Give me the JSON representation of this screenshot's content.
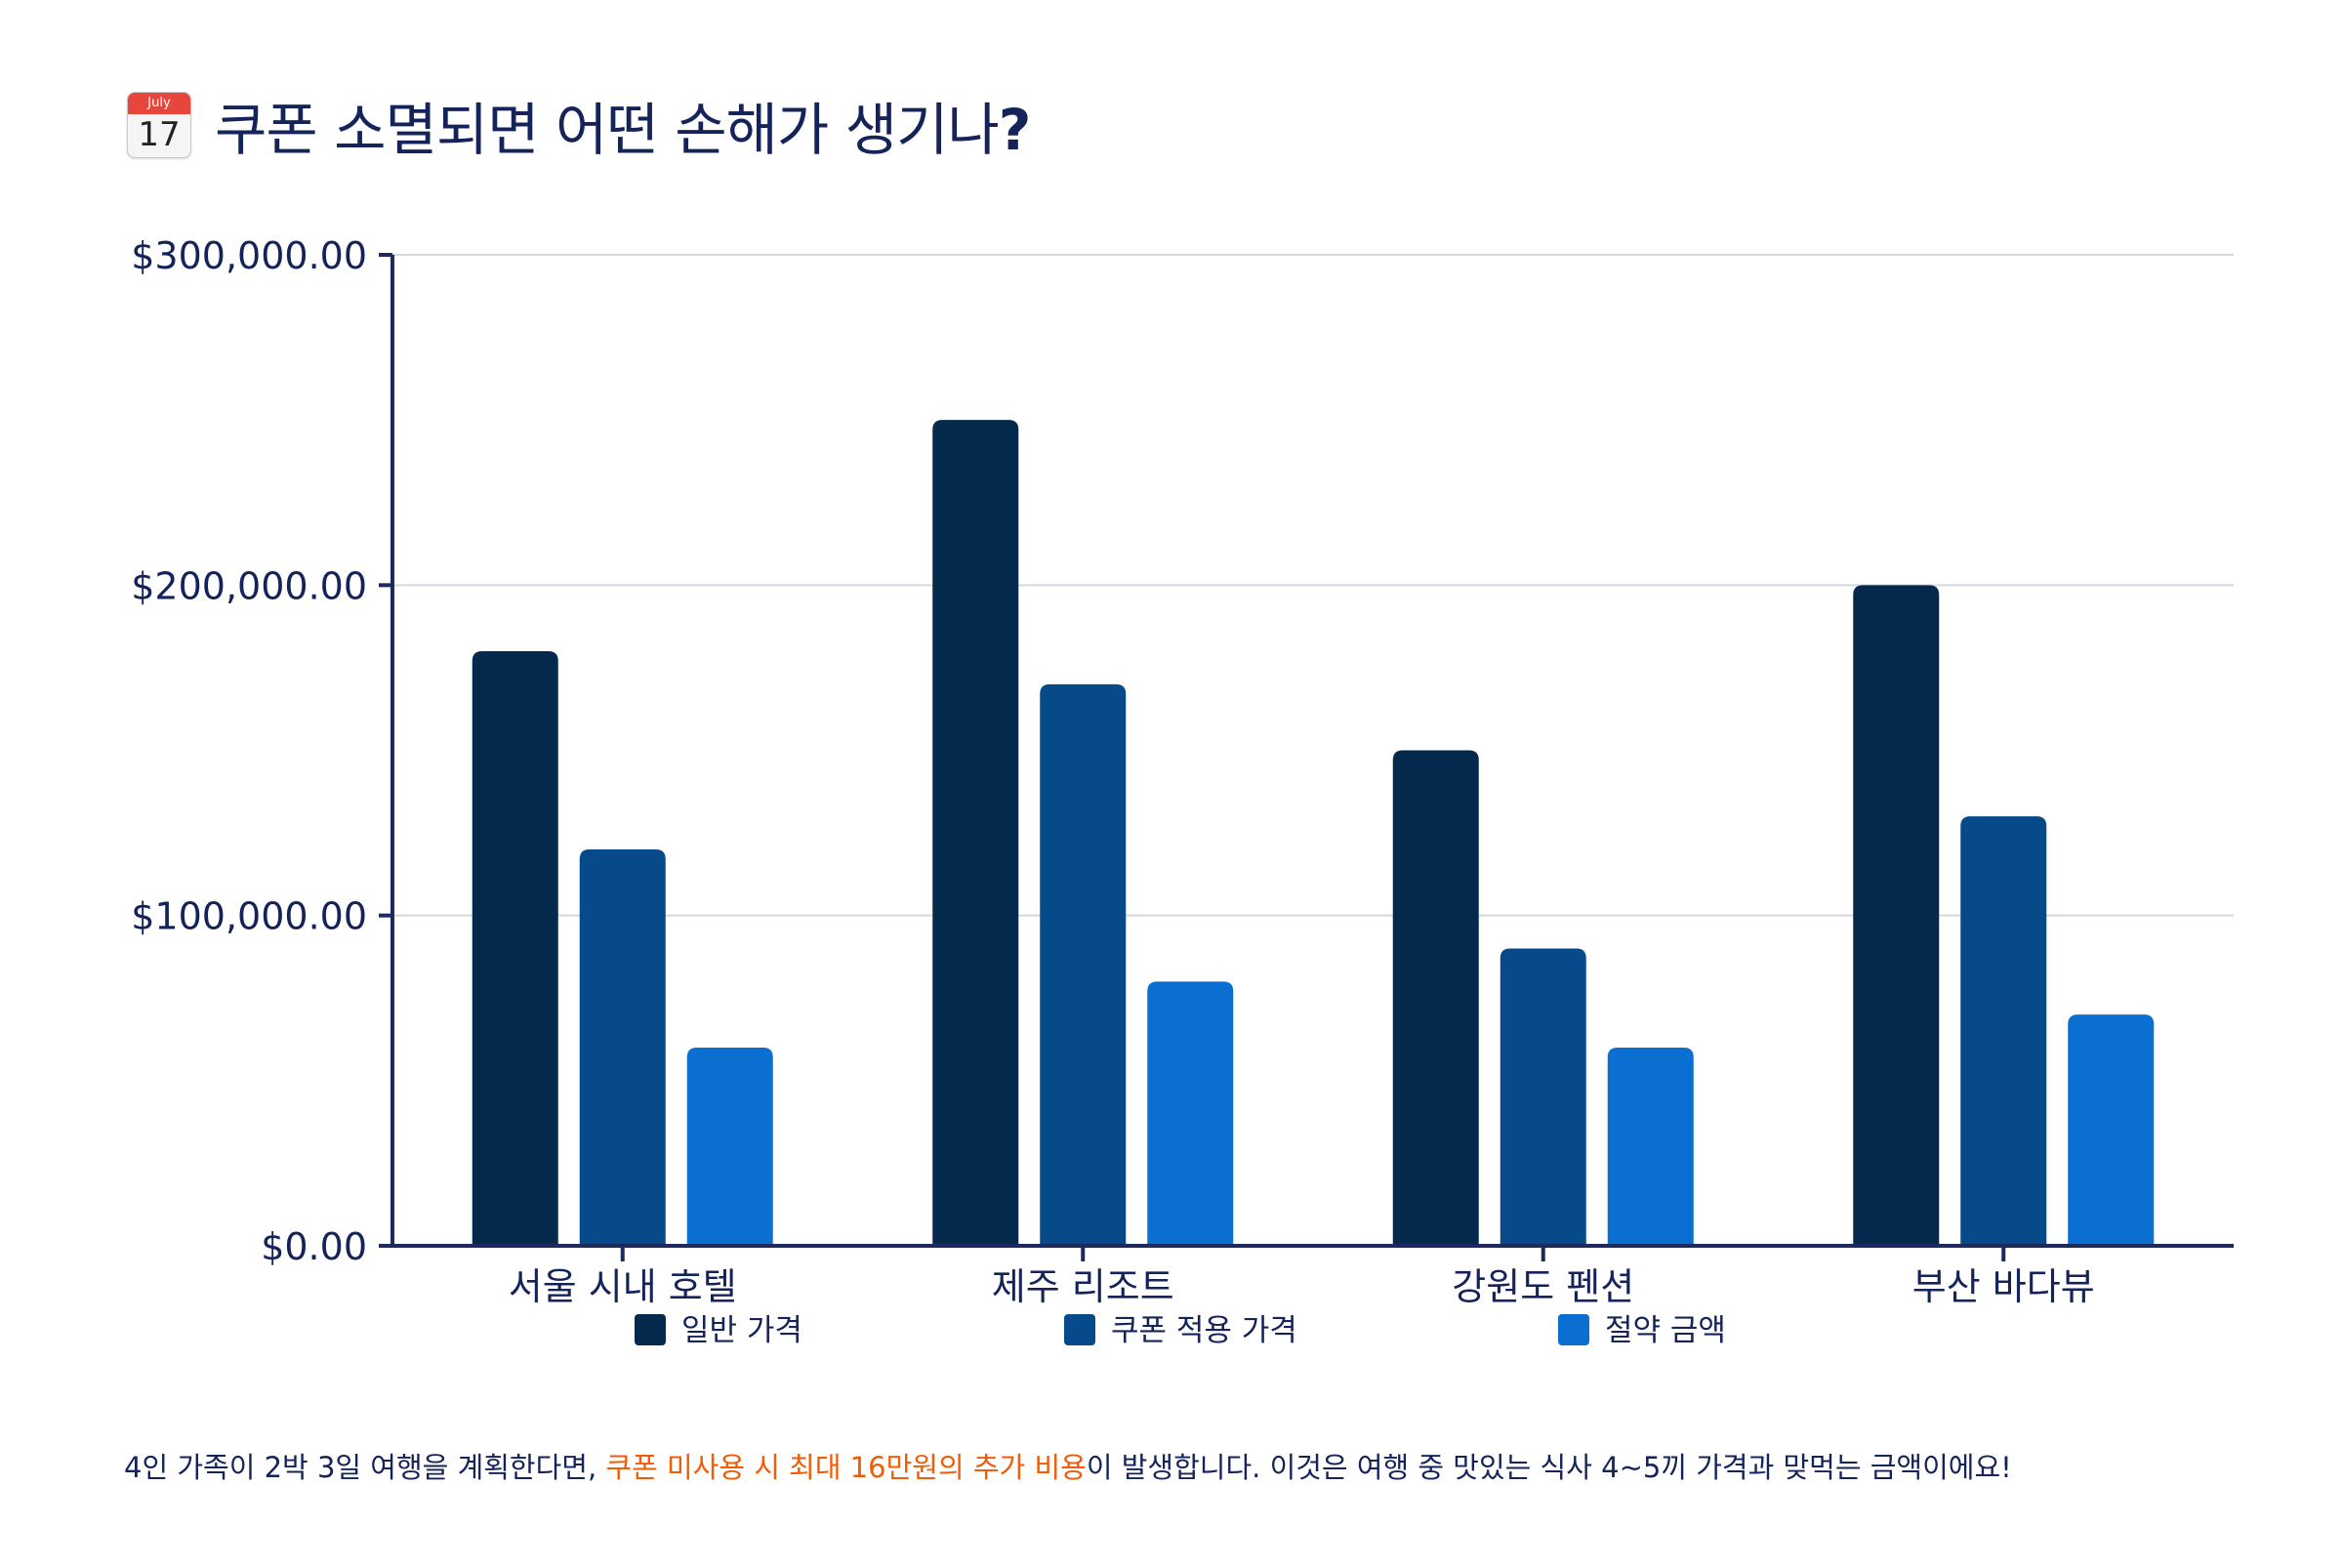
{
  "title": {
    "icon": "calendar-icon",
    "icon_month": "July",
    "icon_day": "17",
    "text": "쿠폰 소멸되면 어떤 손해가 생기나",
    "suffix": "?"
  },
  "chart_data": {
    "type": "bar",
    "title": "쿠폰 소멸되면 어떤 손해가 생기나?",
    "categories": [
      "서울 시내 호텔",
      "제주 리조트",
      "강원도 펜션",
      "부산 바다뷰"
    ],
    "series": [
      {
        "name": "일반 가격",
        "values": [
          180000,
          250000,
          150000,
          200000
        ],
        "color": "#05284d"
      },
      {
        "name": "쿠폰 적용 가격",
        "values": [
          120000,
          170000,
          90000,
          130000
        ],
        "color": "#074a8a"
      },
      {
        "name": "절약 금액",
        "values": [
          60000,
          80000,
          60000,
          70000
        ],
        "color": "#0a6fd1"
      }
    ],
    "ylim": [
      0,
      300000
    ],
    "yticks": [
      0,
      100000,
      200000,
      300000
    ],
    "ytick_labels": [
      "$0.00",
      "$100,000.00",
      "$200,000.00",
      "$300,000.00"
    ],
    "xlabel": "",
    "ylabel": "",
    "grid": true,
    "legend": "bottom"
  },
  "caption": {
    "part1": "4인 가족이 2박 3일 여행을 계획한다면, ",
    "highlight": "쿠폰 미사용 시 최대 16만원의 추가 비용",
    "part2": "이 발생합니다. 이것은 여행 중 맛있는 식사 4~5끼 가격과 맞먹는 금액이에요!"
  },
  "colors": {
    "text": "#14235a",
    "grid": "#d5d8e0",
    "axis": "#1c2a5e",
    "highlight": "#f25c05"
  }
}
